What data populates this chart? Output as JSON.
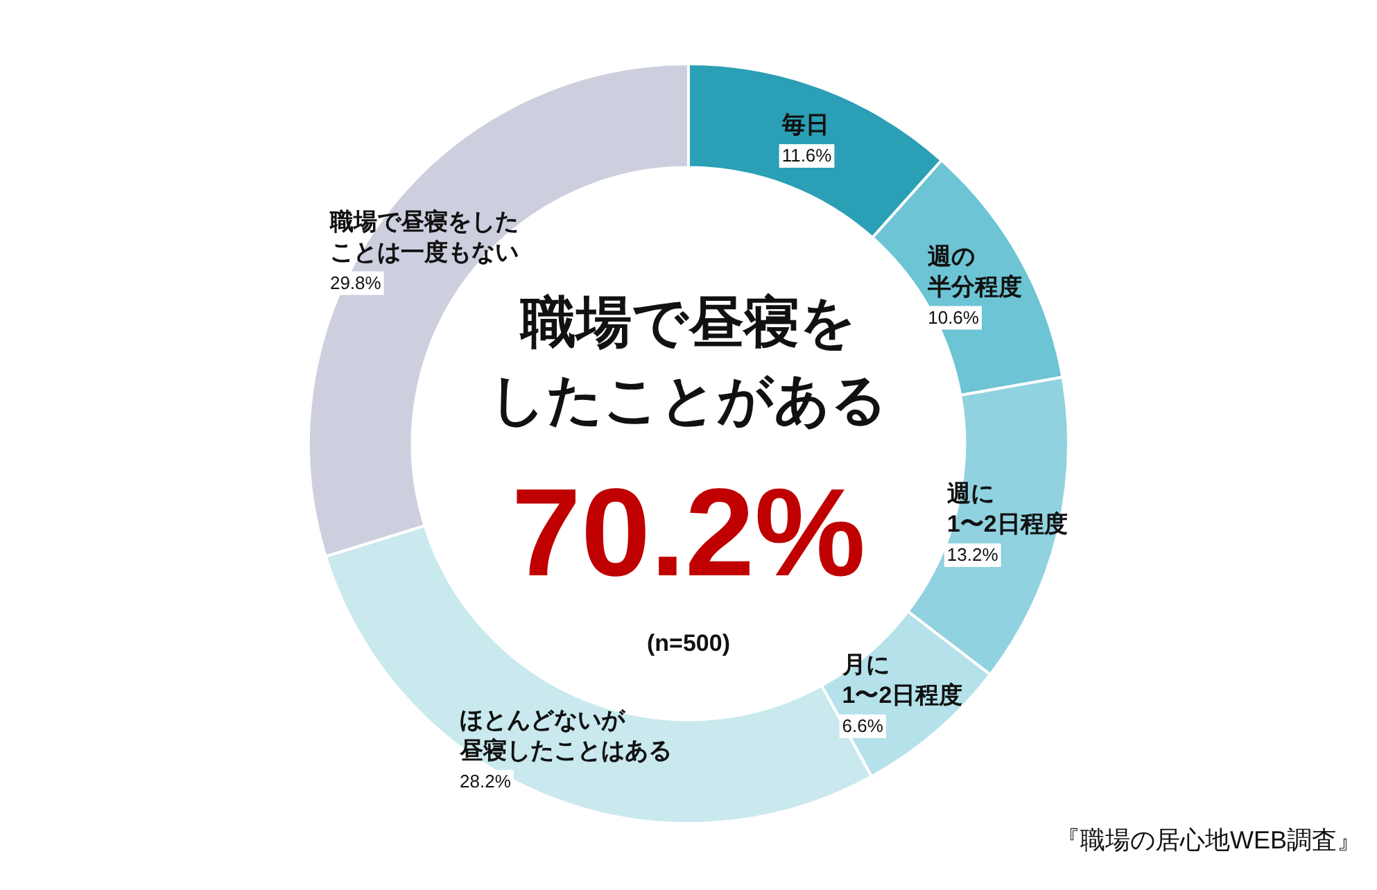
{
  "chart_data": {
    "type": "donut",
    "title": "職場で昼寝をしたことがある",
    "categories": [
      "毎日",
      "週の半分程度",
      "週に1〜2日程度",
      "月に1〜2日程度",
      "ほとんどないが昼寝したことはある",
      "職場で昼寝をしたことは一度もない"
    ],
    "values": [
      11.6,
      10.6,
      13.2,
      6.6,
      28.2,
      29.8
    ],
    "colors": [
      "#2a9fb5",
      "#6cc4d4",
      "#90d2df",
      "#b5e2ea",
      "#c9e9ee",
      "#cdcfdf"
    ],
    "value_labels": [
      "11.6%",
      "10.6%",
      "13.2%",
      "6.6%",
      "28.2%",
      "29.8%"
    ],
    "legend": false,
    "annotations": [
      "70.2%",
      "(n=500)",
      "『職場の居心地WEB調査』"
    ]
  }
}
